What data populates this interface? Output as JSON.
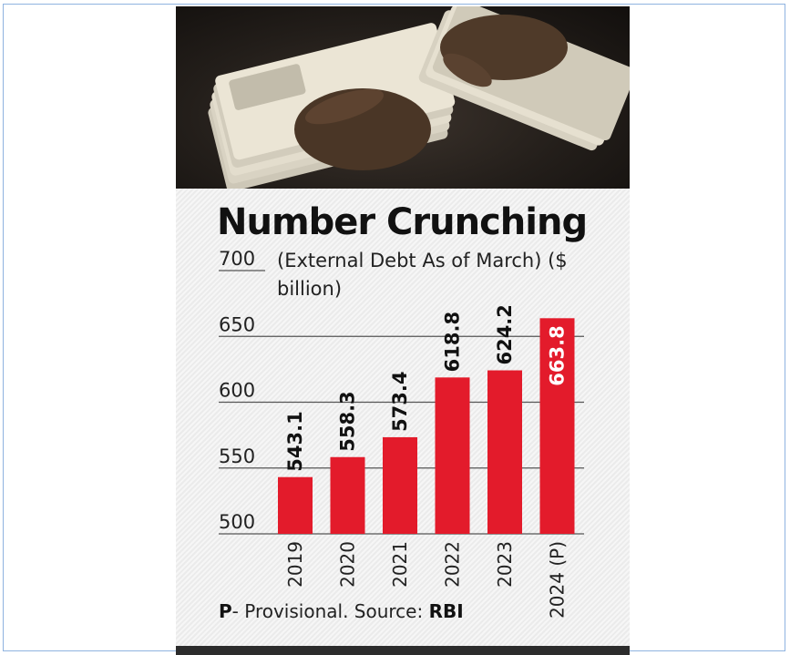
{
  "chart_data": {
    "type": "bar",
    "title": "Number Crunching",
    "subtitle": "(External Debt As of March) ($ billion)",
    "categories": [
      "2019",
      "2020",
      "2021",
      "2022",
      "2023",
      "2024 (P)"
    ],
    "values": [
      543.1,
      558.3,
      573.4,
      618.8,
      624.2,
      663.8
    ],
    "value_labels": [
      "543.1",
      "558.3",
      "573.4",
      "618.8",
      "624.2",
      "663.8"
    ],
    "yticks": [
      "500",
      "550",
      "600",
      "650",
      "700"
    ],
    "ylim": [
      500,
      700
    ],
    "grid": true,
    "colors": {
      "bar": "#e31b2b",
      "label": "#111111",
      "highlight_label": "#ffffff",
      "grid": "#555555"
    },
    "highlight_index": 5
  },
  "footnote": {
    "prefix": "P",
    "text": "- Provisional. Source: ",
    "source": "RBI"
  }
}
